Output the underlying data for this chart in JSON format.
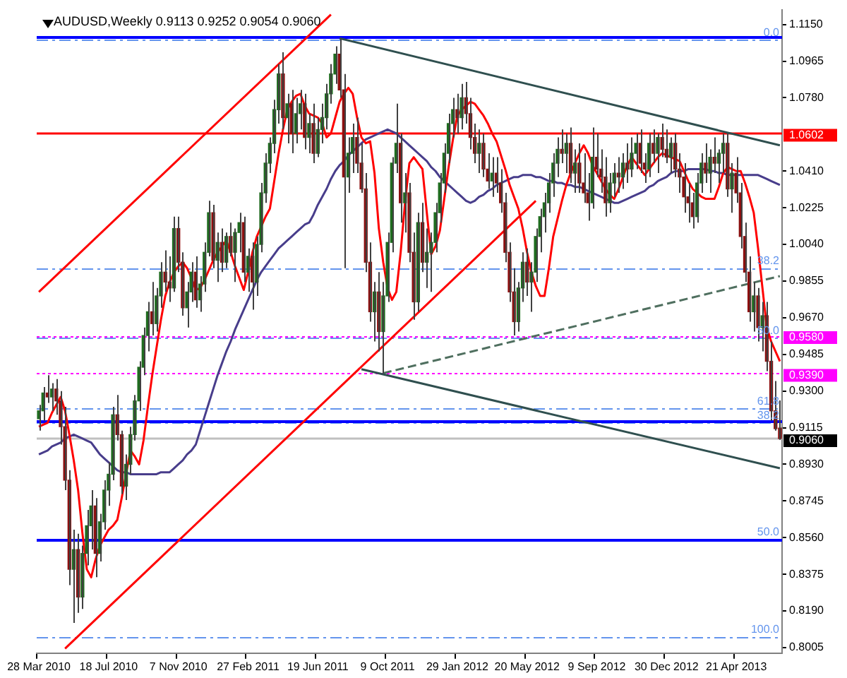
{
  "chart_data": {
    "type": "candlestick",
    "title": "AUDUSD,Weekly 0.9113 0.9252 0.9054 0.9060",
    "categories": [
      "28 Mar 2010",
      null,
      null,
      null,
      null,
      null,
      null,
      null,
      null,
      null,
      null,
      null,
      null,
      null,
      null,
      null,
      "18 Jul 2010",
      null,
      null,
      null,
      null,
      null,
      null,
      null,
      null,
      null,
      null,
      null,
      null,
      null,
      null,
      null,
      "7 Nov 2010",
      null,
      null,
      null,
      null,
      null,
      null,
      null,
      null,
      null,
      null,
      null,
      null,
      null,
      null,
      null,
      "27 Feb 2011",
      null,
      null,
      null,
      null,
      null,
      null,
      null,
      null,
      null,
      null,
      null,
      null,
      null,
      null,
      null,
      "19 Jun 2011",
      null,
      null,
      null,
      null,
      null,
      null,
      null,
      null,
      null,
      null,
      null,
      null,
      null,
      null,
      null,
      "9 Oct 2011",
      null,
      null,
      null,
      null,
      null,
      null,
      null,
      null,
      null,
      null,
      null,
      null,
      null,
      null,
      null,
      "29 Jan 2012",
      null,
      null,
      null,
      null,
      null,
      null,
      null,
      null,
      null,
      null,
      null,
      null,
      null,
      null,
      null,
      "20 May 2012",
      null,
      null,
      null,
      null,
      null,
      null,
      null,
      null,
      null,
      null,
      null,
      null,
      null,
      null,
      null,
      "9 Sep 2012",
      null,
      null,
      null,
      null,
      null,
      null,
      null,
      null,
      null,
      null,
      null,
      null,
      null,
      null,
      null,
      "30 Dec 2012",
      null,
      null,
      null,
      null,
      null,
      null,
      null,
      null,
      null,
      null,
      null,
      null,
      null,
      null,
      null,
      "21 Apr 2013",
      null,
      null,
      null,
      null,
      null,
      null,
      null,
      null,
      null,
      null
    ],
    "ohlc": [
      [
        0.916,
        0.923,
        0.91,
        0.92
      ],
      [
        0.92,
        0.932,
        0.915,
        0.929
      ],
      [
        0.929,
        0.938,
        0.924,
        0.927
      ],
      [
        0.927,
        0.934,
        0.92,
        0.931
      ],
      [
        0.931,
        0.936,
        0.918,
        0.925
      ],
      [
        0.925,
        0.93,
        0.903,
        0.912
      ],
      [
        0.912,
        0.922,
        0.88,
        0.885
      ],
      [
        0.885,
        0.89,
        0.832,
        0.84
      ],
      [
        0.84,
        0.86,
        0.813,
        0.85
      ],
      [
        0.85,
        0.858,
        0.818,
        0.826
      ],
      [
        0.826,
        0.852,
        0.82,
        0.848
      ],
      [
        0.848,
        0.87,
        0.842,
        0.862
      ],
      [
        0.862,
        0.88,
        0.85,
        0.872
      ],
      [
        0.872,
        0.876,
        0.836,
        0.848
      ],
      [
        0.848,
        0.868,
        0.844,
        0.864
      ],
      [
        0.864,
        0.885,
        0.86,
        0.88
      ],
      [
        0.88,
        0.894,
        0.872,
        0.888
      ],
      [
        0.888,
        0.922,
        0.885,
        0.918
      ],
      [
        0.918,
        0.928,
        0.905,
        0.908
      ],
      [
        0.908,
        0.91,
        0.878,
        0.882
      ],
      [
        0.882,
        0.898,
        0.875,
        0.893
      ],
      [
        0.893,
        0.912,
        0.888,
        0.908
      ],
      [
        0.908,
        0.928,
        0.905,
        0.925
      ],
      [
        0.925,
        0.945,
        0.92,
        0.942
      ],
      [
        0.942,
        0.962,
        0.938,
        0.958
      ],
      [
        0.958,
        0.975,
        0.95,
        0.97
      ],
      [
        0.97,
        0.985,
        0.958,
        0.964
      ],
      [
        0.964,
        0.982,
        0.96,
        0.978
      ],
      [
        0.978,
        0.995,
        0.972,
        0.99
      ],
      [
        0.99,
        1.001,
        0.98,
        0.985
      ],
      [
        0.985,
        0.998,
        0.975,
        0.982
      ],
      [
        0.982,
        1.018,
        0.98,
        1.012
      ],
      [
        1.012,
        1.018,
        0.99,
        0.995
      ],
      [
        0.995,
        1.0,
        0.968,
        0.972
      ],
      [
        0.972,
        0.985,
        0.962,
        0.98
      ],
      [
        0.98,
        0.995,
        0.975,
        0.99
      ],
      [
        0.99,
        0.998,
        0.972,
        0.976
      ],
      [
        0.976,
        0.988,
        0.97,
        0.984
      ],
      [
        0.984,
        1.005,
        0.98,
        1.0
      ],
      [
        1.0,
        1.026,
        0.998,
        1.02
      ],
      [
        1.02,
        1.024,
        0.992,
        0.996
      ],
      [
        0.996,
        1.01,
        0.985,
        1.005
      ],
      [
        1.005,
        1.012,
        0.99,
        0.995
      ],
      [
        0.995,
        1.01,
        0.992,
        1.008
      ],
      [
        1.008,
        1.015,
        0.998,
        1.0
      ],
      [
        1.0,
        1.012,
        0.985,
        1.01
      ],
      [
        1.01,
        1.02,
        1.0,
        1.015
      ],
      [
        1.015,
        1.018,
        0.985,
        0.99
      ],
      [
        0.99,
        1.002,
        0.98,
        0.998
      ],
      [
        0.998,
        1.005,
        0.971,
        0.985
      ],
      [
        0.985,
        1.008,
        0.978,
        1.004
      ],
      [
        1.004,
        1.035,
        1.0,
        1.03
      ],
      [
        1.03,
        1.05,
        1.025,
        1.045
      ],
      [
        1.045,
        1.058,
        1.04,
        1.055
      ],
      [
        1.055,
        1.077,
        1.05,
        1.072
      ],
      [
        1.072,
        1.095,
        1.065,
        1.09
      ],
      [
        1.09,
        1.101,
        1.062,
        1.068
      ],
      [
        1.068,
        1.08,
        1.055,
        1.075
      ],
      [
        1.075,
        1.082,
        1.05,
        1.06
      ],
      [
        1.06,
        1.078,
        1.055,
        1.07
      ],
      [
        1.07,
        1.082,
        1.062,
        1.075
      ],
      [
        1.075,
        1.08,
        1.052,
        1.058
      ],
      [
        1.058,
        1.07,
        1.05,
        1.065
      ],
      [
        1.065,
        1.075,
        1.045,
        1.05
      ],
      [
        1.05,
        1.068,
        1.048,
        1.062
      ],
      [
        1.062,
        1.075,
        1.055,
        1.068
      ],
      [
        1.068,
        1.085,
        1.062,
        1.08
      ],
      [
        1.08,
        1.095,
        1.075,
        1.09
      ],
      [
        1.09,
        1.104,
        1.085,
        1.1
      ],
      [
        1.1,
        1.108,
        1.078,
        1.082
      ],
      [
        1.082,
        1.09,
        0.992,
        1.038
      ],
      [
        1.038,
        1.058,
        1.03,
        1.05
      ],
      [
        1.05,
        1.065,
        1.04,
        1.058
      ],
      [
        1.058,
        1.068,
        1.04,
        1.045
      ],
      [
        1.045,
        1.055,
        1.03,
        1.032
      ],
      [
        1.032,
        1.04,
        0.99,
        0.995
      ],
      [
        0.995,
        1.005,
        0.965,
        0.97
      ],
      [
        0.97,
        0.985,
        0.955,
        0.98
      ],
      [
        0.98,
        0.99,
        0.95,
        0.96
      ],
      [
        0.96,
        0.985,
        0.939,
        0.978
      ],
      [
        0.978,
        1.01,
        0.975,
        1.005
      ],
      [
        1.005,
        1.048,
        1.0,
        1.045
      ],
      [
        1.045,
        1.075,
        1.04,
        1.055
      ],
      [
        1.055,
        1.06,
        1.015,
        1.025
      ],
      [
        1.025,
        1.04,
        1.01,
        1.03
      ],
      [
        1.03,
        1.035,
        0.995,
        1.0
      ],
      [
        1.0,
        1.01,
        0.966,
        0.975
      ],
      [
        0.975,
        1.02,
        0.97,
        1.015
      ],
      [
        1.015,
        1.025,
        0.99,
        0.995
      ],
      [
        0.995,
        1.012,
        0.982,
        1.0
      ],
      [
        1.0,
        1.01,
        0.98,
        1.005
      ],
      [
        1.005,
        1.025,
        1.0,
        1.02
      ],
      [
        1.02,
        1.04,
        1.015,
        1.035
      ],
      [
        1.035,
        1.055,
        1.03,
        1.05
      ],
      [
        1.05,
        1.07,
        1.045,
        1.065
      ],
      [
        1.065,
        1.078,
        1.058,
        1.072
      ],
      [
        1.072,
        1.08,
        1.06,
        1.068
      ],
      [
        1.068,
        1.085,
        1.062,
        1.078
      ],
      [
        1.078,
        1.086,
        1.065,
        1.07
      ],
      [
        1.07,
        1.078,
        1.052,
        1.058
      ],
      [
        1.058,
        1.065,
        1.045,
        1.05
      ],
      [
        1.05,
        1.062,
        1.04,
        1.055
      ],
      [
        1.055,
        1.06,
        1.038,
        1.042
      ],
      [
        1.042,
        1.05,
        1.032,
        1.036
      ],
      [
        1.036,
        1.048,
        1.028,
        1.04
      ],
      [
        1.04,
        1.048,
        1.03,
        1.035
      ],
      [
        1.035,
        1.042,
        1.02,
        1.025
      ],
      [
        1.025,
        1.03,
        0.995,
        1.0
      ],
      [
        1.0,
        1.005,
        0.975,
        0.98
      ],
      [
        0.98,
        0.992,
        0.958,
        0.965
      ],
      [
        0.965,
        0.985,
        0.96,
        0.982
      ],
      [
        0.982,
        1.0,
        0.975,
        0.995
      ],
      [
        0.995,
        1.002,
        0.978,
        0.985
      ],
      [
        0.985,
        0.995,
        0.97,
        0.99
      ],
      [
        0.99,
        1.012,
        0.985,
        1.008
      ],
      [
        1.008,
        1.022,
        1.0,
        1.018
      ],
      [
        1.018,
        1.03,
        1.01,
        1.025
      ],
      [
        1.025,
        1.04,
        1.02,
        1.035
      ],
      [
        1.035,
        1.05,
        1.028,
        1.045
      ],
      [
        1.045,
        1.058,
        1.038,
        1.052
      ],
      [
        1.052,
        1.062,
        1.045,
        1.05
      ],
      [
        1.05,
        1.06,
        1.04,
        1.055
      ],
      [
        1.055,
        1.063,
        1.035,
        1.04
      ],
      [
        1.04,
        1.052,
        1.03,
        1.045
      ],
      [
        1.045,
        1.055,
        1.03,
        1.035
      ],
      [
        1.035,
        1.05,
        1.025,
        1.03
      ],
      [
        1.03,
        1.04,
        1.016,
        1.025
      ],
      [
        1.025,
        1.063,
        1.022,
        1.048
      ],
      [
        1.048,
        1.06,
        1.038,
        1.042
      ],
      [
        1.042,
        1.052,
        1.03,
        1.038
      ],
      [
        1.038,
        1.048,
        1.018,
        1.025
      ],
      [
        1.025,
        1.04,
        1.02,
        1.035
      ],
      [
        1.035,
        1.045,
        1.028,
        1.04
      ],
      [
        1.04,
        1.048,
        1.03,
        1.038
      ],
      [
        1.038,
        1.05,
        1.032,
        1.045
      ],
      [
        1.045,
        1.055,
        1.035,
        1.042
      ],
      [
        1.042,
        1.058,
        1.038,
        1.05
      ],
      [
        1.05,
        1.06,
        1.042,
        1.055
      ],
      [
        1.055,
        1.062,
        1.04,
        1.045
      ],
      [
        1.045,
        1.05,
        1.035,
        1.042
      ],
      [
        1.042,
        1.06,
        1.038,
        1.055
      ],
      [
        1.055,
        1.062,
        1.045,
        1.05
      ],
      [
        1.05,
        1.06,
        1.04,
        1.058
      ],
      [
        1.058,
        1.065,
        1.048,
        1.052
      ],
      [
        1.052,
        1.062,
        1.045,
        1.048
      ],
      [
        1.048,
        1.058,
        1.04,
        1.055
      ],
      [
        1.055,
        1.06,
        1.038,
        1.042
      ],
      [
        1.042,
        1.05,
        1.03,
        1.038
      ],
      [
        1.038,
        1.045,
        1.02,
        1.028
      ],
      [
        1.028,
        1.035,
        1.015,
        1.025
      ],
      [
        1.025,
        1.03,
        1.012,
        1.018
      ],
      [
        1.018,
        1.04,
        1.015,
        1.035
      ],
      [
        1.035,
        1.05,
        1.03,
        1.045
      ],
      [
        1.045,
        1.055,
        1.035,
        1.04
      ],
      [
        1.04,
        1.052,
        1.03,
        1.048
      ],
      [
        1.048,
        1.058,
        1.04,
        1.045
      ],
      [
        1.045,
        1.052,
        1.035,
        1.05
      ],
      [
        1.05,
        1.06,
        1.04,
        1.055
      ],
      [
        1.055,
        1.06,
        1.028,
        1.032
      ],
      [
        1.032,
        1.045,
        1.02,
        1.04
      ],
      [
        1.04,
        1.048,
        1.025,
        1.03
      ],
      [
        1.03,
        1.035,
        1.002,
        1.008
      ],
      [
        1.008,
        1.015,
        0.985,
        0.99
      ],
      [
        0.99,
        0.998,
        0.965,
        0.97
      ],
      [
        0.97,
        0.985,
        0.96,
        0.978
      ],
      [
        0.978,
        0.982,
        0.955,
        0.962
      ],
      [
        0.962,
        0.975,
        0.95,
        0.968
      ],
      [
        0.968,
        0.975,
        0.94,
        0.945
      ],
      [
        0.945,
        0.955,
        0.915,
        0.92
      ],
      [
        0.92,
        0.935,
        0.91,
        0.911
      ],
      [
        0.9113,
        0.9252,
        0.9054,
        0.906
      ]
    ],
    "series": [
      {
        "type": "line",
        "color": "#ff0000",
        "values": [
          0.912,
          0.913,
          0.914,
          0.919,
          0.923,
          0.927,
          0.92,
          0.908,
          0.895,
          0.88,
          0.858,
          0.84,
          0.836,
          0.845,
          0.852,
          0.856,
          0.86,
          0.862,
          0.865,
          0.876,
          0.888,
          0.9,
          0.897,
          0.893,
          0.905,
          0.922,
          0.938,
          0.952,
          0.966,
          0.978,
          0.985,
          0.99,
          0.993,
          0.995,
          0.992,
          0.987,
          0.981,
          0.982,
          0.986,
          0.991,
          0.996,
          1.0,
          1.003,
          1.006,
          1.0,
          0.993,
          0.987,
          0.981,
          0.99,
          1.0,
          1.008,
          1.013,
          1.018,
          1.022,
          1.036,
          1.05,
          1.062,
          1.072,
          1.076,
          1.079,
          1.08,
          1.074,
          1.07,
          1.069,
          1.068,
          1.065,
          1.058,
          1.06,
          1.068,
          1.076,
          1.08,
          1.083,
          1.08,
          1.068,
          1.058,
          1.055,
          1.056,
          1.04,
          1.012,
          0.995,
          0.982,
          0.976,
          0.98,
          1.0,
          1.025,
          1.045,
          1.048,
          1.045,
          1.042,
          1.02,
          0.999,
          1.003,
          1.011,
          1.027,
          1.043,
          1.057,
          1.069,
          1.072,
          1.074,
          1.076,
          1.075,
          1.072,
          1.069,
          1.065,
          1.06,
          1.056,
          1.049,
          1.042,
          1.034,
          1.028,
          1.022,
          1.012,
          1.0,
          0.99,
          0.983,
          0.978,
          0.978,
          0.992,
          1.008,
          1.017,
          1.026,
          1.034,
          1.04,
          1.045,
          1.05,
          1.054,
          1.05,
          1.044,
          1.04,
          1.036,
          1.032,
          1.029,
          1.027,
          1.032,
          1.038,
          1.044,
          1.048,
          1.045,
          1.042,
          1.039,
          1.042,
          1.045,
          1.048,
          1.05,
          1.049,
          1.048,
          1.047,
          1.046,
          1.041,
          1.036,
          1.032,
          1.03,
          1.028,
          1.027,
          1.027,
          1.027,
          1.033,
          1.04,
          1.043,
          1.042,
          1.041,
          1.041,
          1.035,
          1.028,
          1.02,
          1.002,
          0.982,
          0.962,
          0.955,
          0.95,
          0.945
        ]
      },
      {
        "type": "line",
        "color": "#483d8b",
        "values": [
          0.898,
          0.899,
          0.9,
          0.902,
          0.903,
          0.904,
          0.906,
          0.907,
          0.908,
          0.907,
          0.906,
          0.905,
          0.904,
          0.901,
          0.898,
          0.896,
          0.894,
          0.892,
          0.89,
          0.889,
          0.889,
          0.888,
          0.888,
          0.888,
          0.888,
          0.888,
          0.888,
          0.888,
          0.889,
          0.889,
          0.889,
          0.891,
          0.893,
          0.895,
          0.898,
          0.9,
          0.903,
          0.91,
          0.917,
          0.924,
          0.931,
          0.938,
          0.944,
          0.95,
          0.955,
          0.961,
          0.966,
          0.971,
          0.976,
          0.981,
          0.986,
          0.99,
          0.993,
          0.996,
          0.999,
          1.002,
          1.004,
          1.006,
          1.008,
          1.01,
          1.012,
          1.014,
          1.015,
          1.019,
          1.024,
          1.028,
          1.032,
          1.037,
          1.041,
          1.044,
          1.046,
          1.049,
          1.051,
          1.053,
          1.055,
          1.057,
          1.058,
          1.059,
          1.06,
          1.061,
          1.062,
          1.061,
          1.06,
          1.058,
          1.056,
          1.054,
          1.052,
          1.05,
          1.048,
          1.046,
          1.043,
          1.041,
          1.038,
          1.036,
          1.034,
          1.032,
          1.03,
          1.028,
          1.026,
          1.025,
          1.026,
          1.028,
          1.029,
          1.031,
          1.032,
          1.034,
          1.035,
          1.036,
          1.037,
          1.038,
          1.038,
          1.039,
          1.039,
          1.039,
          1.038,
          1.038,
          1.037,
          1.036,
          1.036,
          1.035,
          1.035,
          1.034,
          1.034,
          1.033,
          1.033,
          1.032,
          1.031,
          1.03,
          1.029,
          1.028,
          1.027,
          1.026,
          1.025,
          1.025,
          1.026,
          1.027,
          1.028,
          1.029,
          1.03,
          1.031,
          1.033,
          1.034,
          1.036,
          1.037,
          1.038,
          1.04,
          1.041,
          1.041,
          1.041,
          1.042,
          1.042,
          1.042,
          1.042,
          1.042,
          1.041,
          1.041,
          1.04,
          1.04,
          1.039,
          1.039,
          1.039,
          1.039,
          1.039,
          1.039,
          1.039,
          1.039,
          1.038,
          1.037,
          1.036,
          1.035,
          1.034
        ]
      },
      {
        "type": "line",
        "color": "#ff0000",
        "values": [
          0.98,
          null,
          null,
          null,
          null,
          null,
          null,
          null,
          null,
          null,
          null,
          null,
          null,
          null,
          null,
          null,
          null,
          null,
          null,
          null,
          null,
          null,
          null,
          null,
          null,
          null,
          null,
          null,
          null,
          null,
          null,
          null,
          null,
          null,
          null,
          null,
          null,
          null,
          null,
          null,
          null,
          null,
          null,
          null,
          null,
          null,
          null,
          null,
          null,
          null,
          null,
          null,
          null,
          null,
          null,
          null,
          null,
          null,
          null,
          null,
          null,
          null,
          null,
          null,
          null,
          null,
          null,
          1.12,
          null,
          null,
          null,
          null,
          null,
          null,
          null,
          null,
          null,
          null,
          null,
          null,
          null,
          null,
          null,
          null,
          null,
          null,
          null,
          null,
          null,
          null,
          null,
          null,
          null,
          null,
          null,
          null,
          null,
          null,
          null,
          null,
          null,
          null,
          null,
          null,
          null,
          null,
          null,
          null,
          null,
          null,
          null,
          null,
          null,
          null,
          null,
          null,
          null,
          null,
          null,
          null,
          null,
          null,
          null,
          null,
          null,
          null,
          null,
          null,
          null,
          null,
          null,
          null,
          null,
          null,
          null,
          null,
          null,
          null,
          null,
          null,
          null,
          null,
          null,
          null,
          null,
          null,
          null,
          null,
          null,
          null,
          null,
          null,
          null,
          null,
          null,
          null,
          null,
          null,
          null,
          null,
          null,
          null,
          null,
          null,
          null,
          null,
          null,
          null,
          null,
          null,
          null
        ]
      },
      {
        "type": "line",
        "color": "#ff0000",
        "values": [
          null,
          null,
          null,
          null,
          null,
          null,
          0.8,
          null,
          null,
          null,
          null,
          null,
          null,
          null,
          null,
          null,
          null,
          null,
          null,
          null,
          null,
          null,
          null,
          null,
          null,
          null,
          null,
          null,
          null,
          null,
          null,
          null,
          null,
          null,
          null,
          null,
          null,
          null,
          null,
          null,
          null,
          null,
          null,
          null,
          null,
          null,
          null,
          null,
          null,
          null,
          null,
          null,
          null,
          null,
          null,
          null,
          null,
          null,
          null,
          null,
          null,
          null,
          null,
          null,
          null,
          null,
          null,
          null,
          null,
          null,
          null,
          null,
          null,
          null,
          null,
          null,
          null,
          null,
          null,
          null,
          null,
          null,
          null,
          null,
          null,
          null,
          null,
          null,
          null,
          null,
          null,
          null,
          null,
          null,
          null,
          null,
          null,
          null,
          null,
          null,
          null,
          null,
          null,
          null,
          null,
          null,
          null,
          null,
          null,
          null,
          null,
          null,
          null,
          null,
          1.026,
          null,
          null,
          null,
          null,
          null,
          null,
          null,
          null,
          null,
          null,
          null,
          null,
          null,
          null,
          null,
          null,
          null,
          null,
          null,
          null,
          null,
          null,
          null,
          null,
          null,
          null,
          null,
          null,
          null,
          null,
          null,
          null,
          null,
          null,
          null,
          null,
          null,
          null,
          null,
          null,
          null,
          null,
          null,
          null,
          null,
          null,
          null,
          null,
          null,
          null,
          null,
          null,
          null,
          null,
          null,
          null
        ]
      },
      {
        "type": "line",
        "color": "#2f4f4f",
        "values": [
          null,
          null,
          null,
          null,
          null,
          null,
          null,
          null,
          null,
          null,
          null,
          null,
          null,
          null,
          null,
          null,
          null,
          null,
          null,
          null,
          null,
          null,
          null,
          null,
          null,
          null,
          null,
          null,
          null,
          null,
          null,
          null,
          null,
          null,
          null,
          null,
          null,
          null,
          null,
          null,
          null,
          null,
          null,
          null,
          null,
          null,
          null,
          null,
          null,
          null,
          null,
          null,
          null,
          null,
          null,
          null,
          null,
          null,
          null,
          null,
          null,
          null,
          null,
          null,
          null,
          null,
          null,
          null,
          null,
          1.108,
          null,
          null,
          null,
          null,
          null,
          null,
          null,
          null,
          null,
          null,
          null,
          null,
          null,
          null,
          null,
          null,
          null,
          null,
          null,
          null,
          null,
          null,
          null,
          null,
          null,
          null,
          null,
          null,
          null,
          null,
          null,
          null,
          null,
          null,
          null,
          null,
          null,
          null,
          null,
          null,
          null,
          null,
          null,
          null,
          null,
          null,
          null,
          null,
          null,
          null,
          null,
          null,
          null,
          null,
          null,
          null,
          null,
          null,
          null,
          null,
          null,
          null,
          null,
          null,
          null,
          null,
          null,
          null,
          null,
          null,
          null,
          null,
          null,
          null,
          null,
          null,
          null,
          null,
          null,
          null,
          null,
          null,
          null,
          null,
          null,
          null,
          null,
          null,
          null,
          null,
          null,
          null,
          null,
          null,
          null,
          null,
          null,
          null,
          null,
          null,
          1.054
        ]
      },
      {
        "type": "line",
        "color": "#2f4f4f",
        "values": [
          null,
          null,
          null,
          null,
          null,
          null,
          null,
          null,
          null,
          null,
          null,
          null,
          null,
          null,
          null,
          null,
          null,
          null,
          null,
          null,
          null,
          null,
          null,
          null,
          null,
          null,
          null,
          null,
          null,
          null,
          null,
          null,
          null,
          null,
          null,
          null,
          null,
          null,
          null,
          null,
          null,
          null,
          null,
          null,
          null,
          null,
          null,
          null,
          null,
          null,
          null,
          null,
          null,
          null,
          null,
          null,
          null,
          null,
          null,
          null,
          null,
          null,
          null,
          null,
          null,
          null,
          null,
          null,
          null,
          null,
          null,
          null,
          null,
          null,
          0.941,
          null,
          null,
          null,
          null,
          null,
          null,
          null,
          null,
          null,
          null,
          null,
          null,
          null,
          null,
          null,
          null,
          null,
          null,
          null,
          null,
          null,
          null,
          null,
          null,
          null,
          null,
          null,
          null,
          null,
          null,
          null,
          null,
          null,
          null,
          null,
          null,
          null,
          null,
          null,
          null,
          null,
          null,
          null,
          null,
          null,
          null,
          null,
          null,
          null,
          null,
          null,
          null,
          null,
          null,
          null,
          null,
          null,
          null,
          null,
          null,
          null,
          null,
          null,
          null,
          null,
          null,
          null,
          null,
          null,
          null,
          null,
          null,
          null,
          null,
          null,
          null,
          null,
          null,
          null,
          null,
          null,
          null,
          null,
          null,
          null,
          null,
          null,
          null,
          null,
          null,
          null,
          null,
          null,
          null,
          null,
          0.891
        ]
      },
      {
        "type": "line",
        "color": "#4f6f5f",
        "line_style": "dashed",
        "values": [
          null,
          null,
          null,
          null,
          null,
          null,
          null,
          null,
          null,
          null,
          null,
          null,
          null,
          null,
          null,
          null,
          null,
          null,
          null,
          null,
          null,
          null,
          null,
          null,
          null,
          null,
          null,
          null,
          null,
          null,
          null,
          null,
          null,
          null,
          null,
          null,
          null,
          null,
          null,
          null,
          null,
          null,
          null,
          null,
          null,
          null,
          null,
          null,
          null,
          null,
          null,
          null,
          null,
          null,
          null,
          null,
          null,
          null,
          null,
          null,
          null,
          null,
          null,
          null,
          null,
          null,
          null,
          null,
          null,
          null,
          null,
          null,
          null,
          null,
          null,
          null,
          null,
          null,
          null,
          0.939,
          null,
          null,
          null,
          null,
          null,
          null,
          null,
          null,
          null,
          null,
          null,
          null,
          null,
          null,
          null,
          null,
          null,
          null,
          null,
          null,
          null,
          null,
          null,
          null,
          null,
          null,
          null,
          null,
          null,
          null,
          null,
          null,
          null,
          null,
          null,
          null,
          null,
          null,
          null,
          null,
          null,
          null,
          null,
          null,
          null,
          null,
          null,
          null,
          null,
          null,
          null,
          null,
          null,
          null,
          null,
          null,
          null,
          null,
          null,
          null,
          null,
          null,
          null,
          null,
          null,
          null,
          null,
          null,
          null,
          null,
          null,
          null,
          null,
          null,
          null,
          null,
          null,
          null,
          null,
          null,
          null,
          null,
          null,
          null,
          null,
          null,
          null,
          null,
          null,
          null,
          0.988
        ]
      }
    ],
    "ylim": [
      0.7977,
      1.1225
    ],
    "annotations": [
      {
        "text": "0.0",
        "y": 1.1071
      },
      {
        "text": "38.2",
        "y": 0.9919
      },
      {
        "text": "50.0",
        "y": 0.9568
      },
      {
        "text": "61.8",
        "y": 0.921
      },
      {
        "text": "38.2",
        "y": 0.914
      },
      {
        "text": "50.0",
        "y": 0.855
      },
      {
        "text": "100.0",
        "y": 0.8061
      }
    ],
    "yticks": [
      {
        "value": 0.8005,
        "label": "0.8005"
      },
      {
        "value": 0.819,
        "label": "0.8190"
      },
      {
        "value": 0.8375,
        "label": "0.8375"
      },
      {
        "value": 0.856,
        "label": "0.8560"
      },
      {
        "value": 0.8745,
        "label": "0.8745"
      },
      {
        "value": 0.893,
        "label": "0.8930"
      },
      {
        "value": 0.9115,
        "label": "0.9115"
      },
      {
        "value": 0.93,
        "label": "0.9300"
      },
      {
        "value": 0.9485,
        "label": "0.9485"
      },
      {
        "value": 0.967,
        "label": "0.9670"
      },
      {
        "value": 0.9855,
        "label": "0.9855"
      },
      {
        "value": 1.004,
        "label": "1.0040"
      },
      {
        "value": 1.0225,
        "label": "1.0225"
      },
      {
        "value": 1.041,
        "label": "1.0410"
      },
      {
        "value": 1.078,
        "label": "1.0780"
      },
      {
        "value": 1.0965,
        "label": "1.0965"
      },
      {
        "value": 1.115,
        "label": "1.1150"
      }
    ],
    "ref_lines": [
      {
        "axis": "y",
        "value": 1.1071,
        "color": "#6495ed",
        "line_style": "dashed"
      },
      {
        "axis": "y",
        "value": 0.9919,
        "color": "#6495ed",
        "line_style": "dashed"
      },
      {
        "axis": "y",
        "value": 0.9568,
        "color": "#6495ed",
        "line_style": "dashed"
      },
      {
        "axis": "y",
        "value": 0.921,
        "color": "#6495ed",
        "line_style": "dashed"
      },
      {
        "axis": "y",
        "value": 0.914,
        "color": "#6495ed",
        "line_style": "dashed"
      },
      {
        "axis": "y",
        "value": 0.8061,
        "color": "#6495ed",
        "line_style": "dashed"
      },
      {
        "axis": "y",
        "value": 1.1085,
        "color": "#0000ff",
        "line_style": "solid"
      },
      {
        "axis": "y",
        "value": 0.9147,
        "color": "#0000ff",
        "line_style": "solid"
      },
      {
        "axis": "y",
        "value": 0.855,
        "color": "#0000ff",
        "line_style": "solid"
      },
      {
        "axis": "y",
        "value": 1.0602,
        "label": "1.0602",
        "color": "#ff0000",
        "line_style": "solid"
      },
      {
        "axis": "y",
        "value": 0.958,
        "label": "0.9580",
        "color": "#ff00ff",
        "line_style": "dotted"
      },
      {
        "axis": "y",
        "value": 0.939,
        "label": "0.9390",
        "color": "#ff00ff",
        "line_style": "dotted"
      },
      {
        "axis": "y",
        "value": 0.906,
        "label": "0.9060",
        "color": "#c0c0c0",
        "line_style": "solid"
      }
    ]
  }
}
